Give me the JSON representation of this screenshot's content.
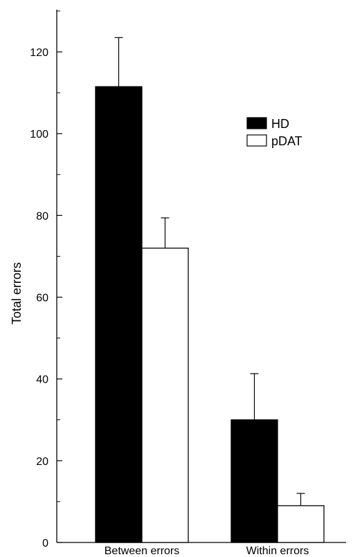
{
  "chart_data": {
    "type": "bar",
    "categories": [
      "Between errors",
      "Within errors"
    ],
    "series": [
      {
        "name": "HD",
        "values": [
          111.5,
          30
        ],
        "errors": [
          12,
          11.3
        ],
        "color": "#000000"
      },
      {
        "name": "pDAT",
        "values": [
          72,
          9
        ],
        "errors": [
          7.4,
          3
        ],
        "color": "#ffffff"
      }
    ],
    "ylabel": "Total errors",
    "ylim": [
      0,
      130
    ],
    "yticks": [
      0,
      20,
      40,
      60,
      80,
      100,
      120
    ],
    "legend": "top-right",
    "grid": false
  }
}
